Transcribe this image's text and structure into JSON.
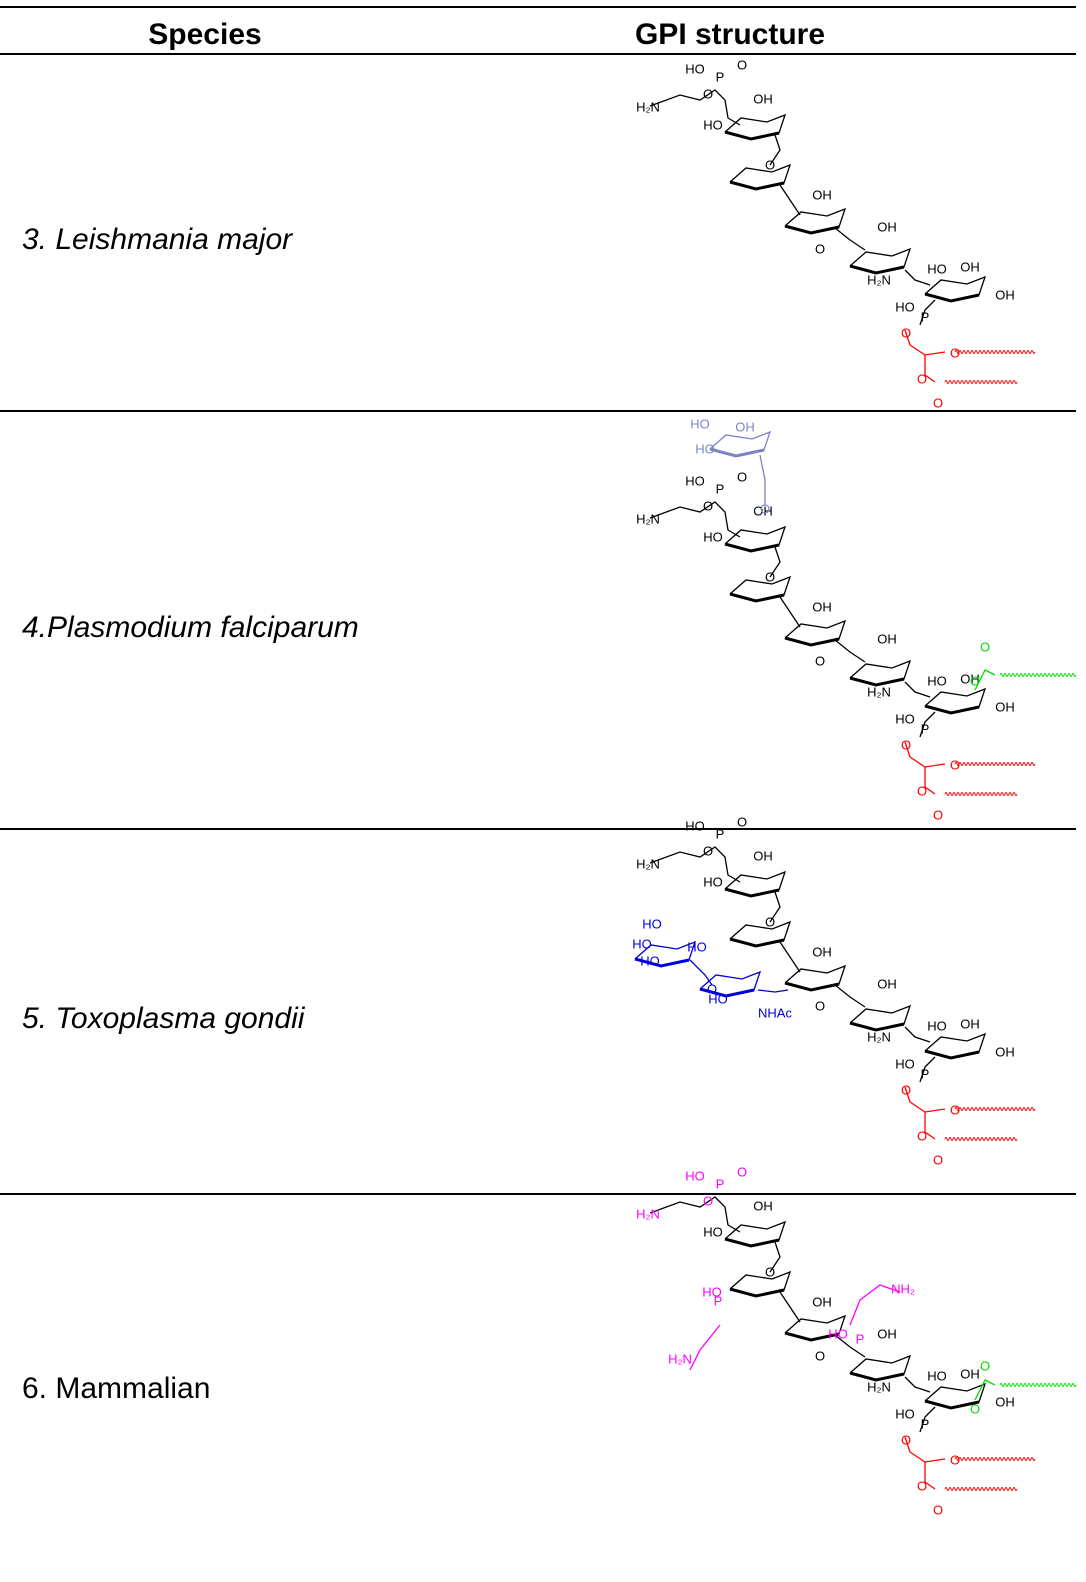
{
  "table": {
    "headers": [
      "Species",
      "GPI structure"
    ],
    "rows": [
      {
        "species": "3. Leishmania major",
        "italic": true,
        "structure": [
          {
            "text": "HO",
            "color": "#000000"
          },
          {
            "text": "P",
            "color": "#000000"
          },
          {
            "text": "O",
            "color": "#000000"
          },
          {
            "text": "O",
            "color": "#000000"
          },
          {
            "text": "H₂N",
            "color": "#000000"
          },
          {
            "text": "OH",
            "color": "#000000"
          },
          {
            "text": "HO",
            "color": "#000000"
          },
          {
            "text": "O",
            "color": "#000000"
          },
          {
            "text": "OH",
            "color": "#000000"
          },
          {
            "text": "O",
            "color": "#000000"
          },
          {
            "text": "OH",
            "color": "#000000"
          },
          {
            "text": "H₂N",
            "color": "#000000"
          },
          {
            "text": "HO",
            "color": "#000000"
          },
          {
            "text": "OH",
            "color": "#000000"
          },
          {
            "text": "OH",
            "color": "#000000"
          },
          {
            "text": "HO",
            "color": "#000000"
          },
          {
            "text": "P",
            "color": "#000000"
          },
          {
            "text": "O",
            "color": "#ff0000"
          },
          {
            "text": "O",
            "color": "#ff0000"
          },
          {
            "text": "O",
            "color": "#ff0000"
          },
          {
            "text": "O",
            "color": "#ff0000"
          }
        ]
      },
      {
        "species": "4.Plasmodium falciparum",
        "italic": true,
        "structure": [
          {
            "text": "HO",
            "color": "#000000"
          },
          {
            "text": "P",
            "color": "#000000"
          },
          {
            "text": "O",
            "color": "#000000"
          },
          {
            "text": "O",
            "color": "#000000"
          },
          {
            "text": "H₂N",
            "color": "#000000"
          },
          {
            "text": "OH",
            "color": "#000000"
          },
          {
            "text": "HO",
            "color": "#000000"
          },
          {
            "text": "O",
            "color": "#000000"
          },
          {
            "text": "OH",
            "color": "#000000"
          },
          {
            "text": "O",
            "color": "#000000"
          },
          {
            "text": "OH",
            "color": "#000000"
          },
          {
            "text": "H₂N",
            "color": "#000000"
          },
          {
            "text": "HO",
            "color": "#000000"
          },
          {
            "text": "OH",
            "color": "#000000"
          },
          {
            "text": "OH",
            "color": "#000000"
          },
          {
            "text": "HO",
            "color": "#000000"
          },
          {
            "text": "P",
            "color": "#000000"
          },
          {
            "text": "O",
            "color": "#ff0000"
          },
          {
            "text": "O",
            "color": "#ff0000"
          },
          {
            "text": "O",
            "color": "#ff0000"
          },
          {
            "text": "O",
            "color": "#ff0000"
          },
          {
            "text": "HO",
            "color": "#7b83c4"
          },
          {
            "text": "OH",
            "color": "#7b83c4"
          },
          {
            "text": "HO",
            "color": "#7b83c4"
          },
          {
            "text": "O",
            "color": "#7b83c4"
          },
          {
            "text": "O",
            "color": "#00dd00"
          },
          {
            "text": "O",
            "color": "#00dd00"
          }
        ]
      },
      {
        "species": "5. Toxoplasma gondii",
        "italic": true,
        "structure": [
          {
            "text": "HO",
            "color": "#000000"
          },
          {
            "text": "P",
            "color": "#000000"
          },
          {
            "text": "O",
            "color": "#000000"
          },
          {
            "text": "O",
            "color": "#000000"
          },
          {
            "text": "H₂N",
            "color": "#000000"
          },
          {
            "text": "OH",
            "color": "#000000"
          },
          {
            "text": "HO",
            "color": "#000000"
          },
          {
            "text": "O",
            "color": "#000000"
          },
          {
            "text": "OH",
            "color": "#000000"
          },
          {
            "text": "O",
            "color": "#000000"
          },
          {
            "text": "OH",
            "color": "#000000"
          },
          {
            "text": "H₂N",
            "color": "#000000"
          },
          {
            "text": "HO",
            "color": "#000000"
          },
          {
            "text": "OH",
            "color": "#000000"
          },
          {
            "text": "OH",
            "color": "#000000"
          },
          {
            "text": "HO",
            "color": "#000000"
          },
          {
            "text": "P",
            "color": "#000000"
          },
          {
            "text": "O",
            "color": "#ff0000"
          },
          {
            "text": "O",
            "color": "#ff0000"
          },
          {
            "text": "O",
            "color": "#ff0000"
          },
          {
            "text": "O",
            "color": "#ff0000"
          },
          {
            "text": "HO",
            "color": "#0000dd"
          },
          {
            "text": "HO",
            "color": "#0000dd"
          },
          {
            "text": "HO",
            "color": "#0000dd"
          },
          {
            "text": "HO",
            "color": "#0000dd"
          },
          {
            "text": "O",
            "color": "#0000dd"
          },
          {
            "text": "HO",
            "color": "#0000dd"
          },
          {
            "text": "NHAc",
            "color": "#0000dd"
          }
        ]
      },
      {
        "species": "6. Mammalian",
        "italic": false,
        "structure": [
          {
            "text": "HO",
            "color": "#ff00ff"
          },
          {
            "text": "P",
            "color": "#ff00ff"
          },
          {
            "text": "O",
            "color": "#ff00ff"
          },
          {
            "text": "O",
            "color": "#ff00ff"
          },
          {
            "text": "H₂N",
            "color": "#ff00ff"
          },
          {
            "text": "OH",
            "color": "#000000"
          },
          {
            "text": "HO",
            "color": "#000000"
          },
          {
            "text": "O",
            "color": "#000000"
          },
          {
            "text": "OH",
            "color": "#000000"
          },
          {
            "text": "O",
            "color": "#000000"
          },
          {
            "text": "OH",
            "color": "#000000"
          },
          {
            "text": "H₂N",
            "color": "#000000"
          },
          {
            "text": "HO",
            "color": "#000000"
          },
          {
            "text": "OH",
            "color": "#000000"
          },
          {
            "text": "OH",
            "color": "#000000"
          },
          {
            "text": "HO",
            "color": "#000000"
          },
          {
            "text": "P",
            "color": "#000000"
          },
          {
            "text": "O",
            "color": "#ff0000"
          },
          {
            "text": "O",
            "color": "#ff0000"
          },
          {
            "text": "O",
            "color": "#ff0000"
          },
          {
            "text": "O",
            "color": "#ff0000"
          },
          {
            "text": "HO",
            "color": "#ff00ff"
          },
          {
            "text": "P",
            "color": "#ff00ff"
          },
          {
            "text": "H₂N",
            "color": "#ff00ff"
          },
          {
            "text": "NH₂",
            "color": "#ff00ff"
          },
          {
            "text": "HO",
            "color": "#ff00ff"
          },
          {
            "text": "P",
            "color": "#ff00ff"
          },
          {
            "text": "O",
            "color": "#00dd00"
          },
          {
            "text": "O",
            "color": "#00dd00"
          }
        ]
      }
    ]
  }
}
